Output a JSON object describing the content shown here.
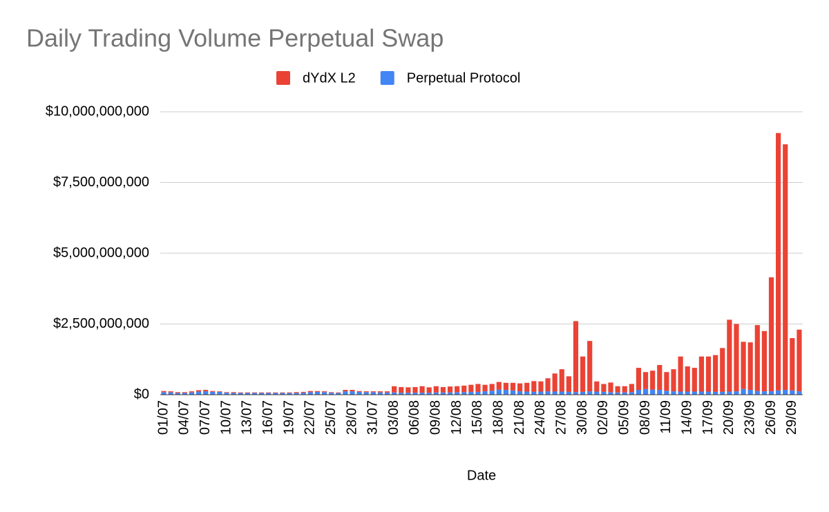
{
  "chart_data": {
    "type": "bar",
    "stacked": true,
    "title": "Daily Trading Volume Perpetual Swap",
    "x_label": "Date",
    "categories": [
      "01/07",
      null,
      null,
      "04/07",
      null,
      null,
      "07/07",
      null,
      null,
      "10/07",
      null,
      null,
      "13/07",
      null,
      null,
      "16/07",
      null,
      null,
      "19/07",
      null,
      null,
      "22/07",
      null,
      null,
      "25/07",
      null,
      null,
      "28/07",
      null,
      null,
      "31/07",
      null,
      null,
      "03/08",
      null,
      null,
      "06/08",
      null,
      null,
      "09/08",
      null,
      null,
      "12/08",
      null,
      null,
      "15/08",
      null,
      null,
      "18/08",
      null,
      null,
      "21/08",
      null,
      null,
      "24/08",
      null,
      null,
      "27/08",
      null,
      null,
      "30/08",
      null,
      null,
      "02/09",
      null,
      null,
      "05/09",
      null,
      null,
      "08/09",
      null,
      null,
      "11/09",
      null,
      null,
      "14/09",
      null,
      null,
      "17/09",
      null,
      null,
      "20/09",
      null,
      null,
      "23/09",
      null,
      null,
      "26/09",
      null,
      null,
      "29/09",
      null
    ],
    "series": [
      {
        "name": "dYdX L2",
        "color": "#ea4335",
        "values": [
          40000000.0,
          40000000.0,
          30000000.0,
          30000000.0,
          40000000.0,
          50000000.0,
          50000000.0,
          30000000.0,
          20000000.0,
          20000000.0,
          30000000.0,
          20000000.0,
          20000000.0,
          20000000.0,
          20000000.0,
          20000000.0,
          20000000.0,
          20000000.0,
          20000000.0,
          30000000.0,
          30000000.0,
          40000000.0,
          30000000.0,
          30000000.0,
          20000000.0,
          20000000.0,
          50000000.0,
          50000000.0,
          30000000.0,
          30000000.0,
          30000000.0,
          40000000.0,
          40000000.0,
          220000000.0,
          200000000.0,
          190000000.0,
          200000000.0,
          230000000.0,
          190000000.0,
          220000000.0,
          190000000.0,
          210000000.0,
          210000000.0,
          230000000.0,
          250000000.0,
          280000000.0,
          230000000.0,
          240000000.0,
          270000000.0,
          250000000.0,
          270000000.0,
          280000000.0,
          310000000.0,
          380000000.0,
          360000000.0,
          460000000.0,
          640000000.0,
          790000000.0,
          550000000.0,
          2510000000.0,
          1250000000.0,
          1780000000.0,
          360000000.0,
          280000000.0,
          340000000.0,
          220000000.0,
          220000000.0,
          290000000.0,
          780000000.0,
          600000000.0,
          670000000.0,
          880000000.0,
          660000000.0,
          780000000.0,
          1240000000.0,
          890000000.0,
          840000000.0,
          1240000000.0,
          1240000000.0,
          1300000000.0,
          1550000000.0,
          2540000000.0,
          2380000000.0,
          1670000000.0,
          1680000000.0,
          2330000000.0,
          2130000000.0,
          4030000000.0,
          9100000000.0,
          8680000000.0,
          1850000000.0,
          2180000000.0
        ]
      },
      {
        "name": "Perpetual Protocol",
        "color": "#4285f4",
        "values": [
          90000000.0,
          80000000.0,
          60000000.0,
          60000000.0,
          80000000.0,
          110000000.0,
          120000000.0,
          100000000.0,
          100000000.0,
          70000000.0,
          60000000.0,
          60000000.0,
          60000000.0,
          60000000.0,
          60000000.0,
          60000000.0,
          60000000.0,
          60000000.0,
          60000000.0,
          60000000.0,
          70000000.0,
          90000000.0,
          100000000.0,
          90000000.0,
          70000000.0,
          60000000.0,
          120000000.0,
          120000000.0,
          100000000.0,
          90000000.0,
          90000000.0,
          80000000.0,
          80000000.0,
          80000000.0,
          70000000.0,
          70000000.0,
          70000000.0,
          70000000.0,
          70000000.0,
          80000000.0,
          80000000.0,
          80000000.0,
          90000000.0,
          90000000.0,
          100000000.0,
          100000000.0,
          120000000.0,
          140000000.0,
          180000000.0,
          170000000.0,
          150000000.0,
          120000000.0,
          110000000.0,
          100000000.0,
          110000000.0,
          120000000.0,
          110000000.0,
          110000000.0,
          100000000.0,
          90000000.0,
          100000000.0,
          120000000.0,
          110000000.0,
          100000000.0,
          90000000.0,
          80000000.0,
          80000000.0,
          90000000.0,
          170000000.0,
          200000000.0,
          180000000.0,
          170000000.0,
          140000000.0,
          120000000.0,
          110000000.0,
          110000000.0,
          110000000.0,
          110000000.0,
          110000000.0,
          100000000.0,
          100000000.0,
          110000000.0,
          120000000.0,
          200000000.0,
          170000000.0,
          130000000.0,
          120000000.0,
          120000000.0,
          150000000.0,
          170000000.0,
          150000000.0,
          120000000.0
        ]
      }
    ],
    "ylim": [
      0,
      10000000000
    ],
    "yticks": [
      {
        "value": 0,
        "label": "$0"
      },
      {
        "value": 2500000000,
        "label": "$2,500,000,000"
      },
      {
        "value": 5000000000,
        "label": "$5,000,000,000"
      },
      {
        "value": 7500000000,
        "label": "$7,500,000,000"
      },
      {
        "value": 10000000000,
        "label": "$10,000,000,000"
      }
    ],
    "grid": true,
    "legend": "top"
  }
}
